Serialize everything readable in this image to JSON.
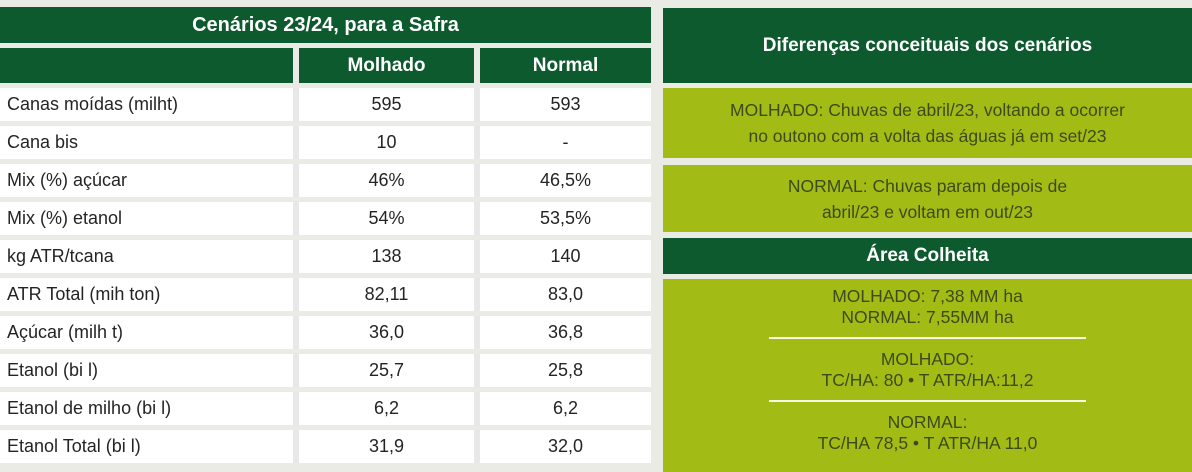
{
  "colors": {
    "dark_green": "#0d5a2e",
    "light_green": "#a3bc15",
    "background": "#e9ebe4"
  },
  "table": {
    "title": "Cenários 23/24, para a Safra",
    "columns": [
      "Molhado",
      "Normal"
    ],
    "rows": [
      {
        "label": "Canas moídas (milht)",
        "molhado": "595",
        "normal": "593"
      },
      {
        "label": "Cana bis",
        "molhado": "10",
        "normal": "-"
      },
      {
        "label": "Mix (%) açúcar",
        "molhado": "46%",
        "normal": "46,5%"
      },
      {
        "label": "Mix (%) etanol",
        "molhado": "54%",
        "normal": "53,5%"
      },
      {
        "label": "kg ATR/tcana",
        "molhado": "138",
        "normal": "140"
      },
      {
        "label": "ATR Total (mih ton)",
        "molhado": "82,11",
        "normal": "83,0"
      },
      {
        "label": "Açúcar (milh t)",
        "molhado": "36,0",
        "normal": "36,8"
      },
      {
        "label": "Etanol (bi l)",
        "molhado": "25,7",
        "normal": "25,8"
      },
      {
        "label": "Etanol de milho (bi l)",
        "molhado": "6,2",
        "normal": "6,2"
      },
      {
        "label": "Etanol Total (bi l)",
        "molhado": "31,9",
        "normal": "32,0"
      }
    ]
  },
  "panel": {
    "header": "Diferenças conceituais dos cenários",
    "molhado_box": {
      "line1": "MOLHADO: Chuvas de abril/23, voltando a ocorrer",
      "line2": "no outono com a volta das águas já em set/23"
    },
    "normal_box": {
      "line1": "NORMAL: Chuvas param depois de",
      "line2": "abril/23 e voltam em out/23"
    },
    "area_header": "Área Colheita",
    "area_box": {
      "line1": "MOLHADO: 7,38 MM ha",
      "line2": "NORMAL: 7,55MM ha",
      "molhado_title": "MOLHADO:",
      "molhado_detail": "TC/HA: 80 • T ATR/HA:11,2",
      "normal_title": "NORMAL:",
      "normal_detail": "TC/HA 78,5 • T ATR/HA 11,0"
    }
  }
}
